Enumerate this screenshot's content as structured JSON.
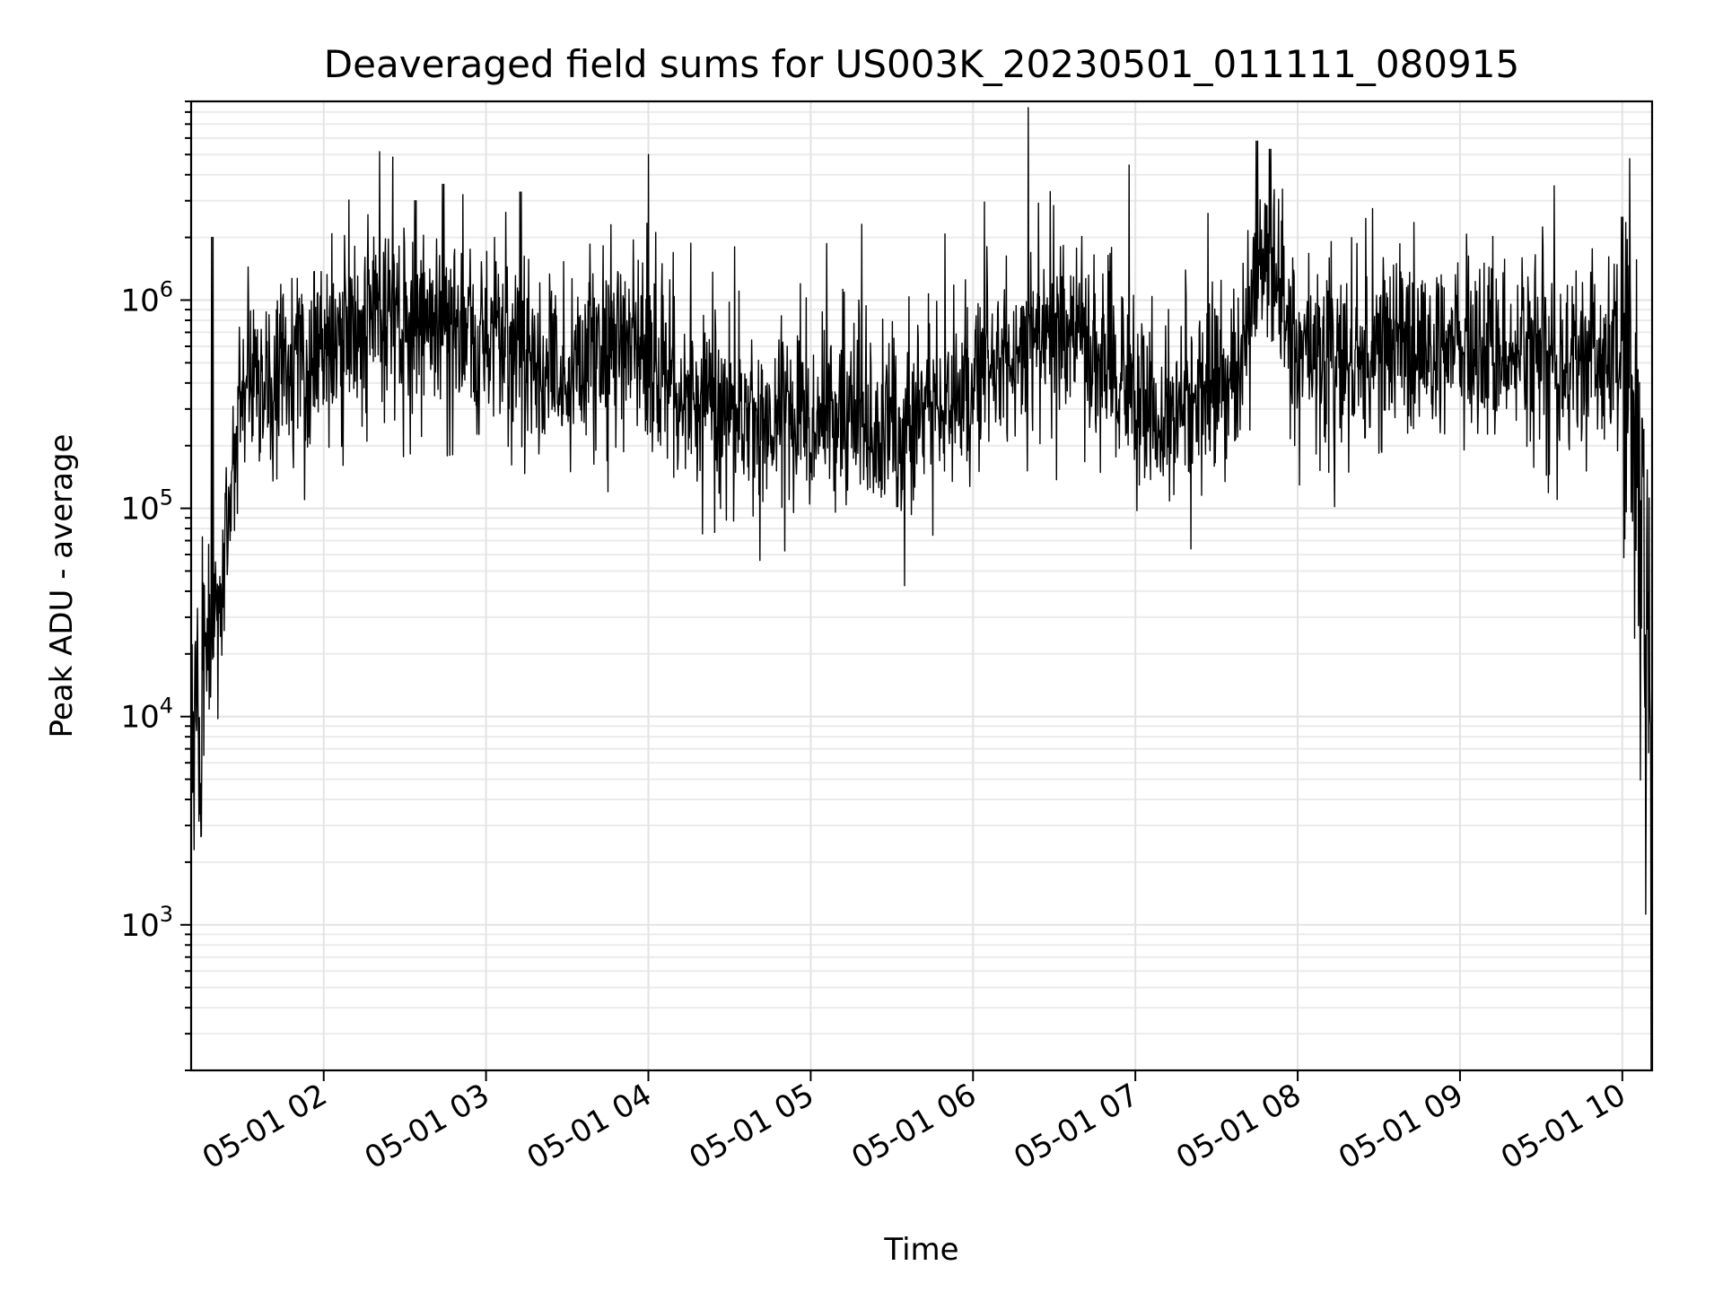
{
  "chart_data": {
    "type": "line",
    "title": "Deaveraged field sums for US003K_20230501_011111_080915",
    "xlabel": "Time",
    "ylabel": "Peak ADU - average",
    "xscale": "time",
    "yscale": "log",
    "xlim": [
      "05-01 01:11",
      "05-01 10:11"
    ],
    "ylim": [
      200,
      9000000
    ],
    "x_ticks": [
      "05-01 02",
      "05-01 03",
      "05-01 04",
      "05-01 05",
      "05-01 06",
      "05-01 07",
      "05-01 08",
      "05-01 09",
      "05-01 10"
    ],
    "y_ticks": [
      {
        "base": "10",
        "exp": "3",
        "value": 1000
      },
      {
        "base": "10",
        "exp": "4",
        "value": 10000
      },
      {
        "base": "10",
        "exp": "5",
        "value": 100000
      },
      {
        "base": "10",
        "exp": "6",
        "value": 1000000
      }
    ],
    "grid": "major and minor",
    "line_color": "#000000",
    "series": [
      {
        "x": [
          "05-01 01:11",
          "05-01 01:15",
          "05-01 01:19",
          "05-01 01:22",
          "05-01 01:25",
          "05-01 01:28",
          "05-01 01:32",
          "05-01 01:36",
          "05-01 01:42",
          "05-01 01:50",
          "05-01 02:00",
          "05-01 02:10",
          "05-01 02:20",
          "05-01 02:30",
          "05-01 02:40",
          "05-01 02:50",
          "05-01 03:00",
          "05-01 03:10",
          "05-01 03:20",
          "05-01 03:30",
          "05-01 03:40",
          "05-01 03:50",
          "05-01 04:00",
          "05-01 04:10",
          "05-01 04:20",
          "05-01 04:30",
          "05-01 04:40",
          "05-01 04:50",
          "05-01 05:00",
          "05-01 05:10",
          "05-01 05:20",
          "05-01 05:30",
          "05-01 05:40",
          "05-01 05:50",
          "05-01 06:00",
          "05-01 06:10",
          "05-01 06:20",
          "05-01 06:30",
          "05-01 06:40",
          "05-01 06:50",
          "05-01 07:00",
          "05-01 07:10",
          "05-01 07:20",
          "05-01 07:30",
          "05-01 07:40",
          "05-01 07:45",
          "05-01 07:50",
          "05-01 08:00",
          "05-01 08:10",
          "05-01 08:20",
          "05-01 08:30",
          "05-01 08:40",
          "05-01 08:50",
          "05-01 09:00",
          "05-01 09:10",
          "05-01 09:20",
          "05-01 09:30",
          "05-01 09:40",
          "05-01 09:50",
          "05-01 10:00",
          "05-01 10:03",
          "05-01 10:06",
          "05-01 10:08",
          "05-01 10:10",
          "05-01 10:11"
        ],
        "y": [
          8000,
          15000,
          25000,
          40000,
          100000,
          300000,
          400000,
          380000,
          420000,
          450000,
          550000,
          700000,
          850000,
          750000,
          700000,
          720000,
          650000,
          500000,
          420000,
          480000,
          560000,
          600000,
          520000,
          380000,
          300000,
          280000,
          270000,
          260000,
          300000,
          260000,
          250000,
          240000,
          260000,
          300000,
          420000,
          550000,
          650000,
          620000,
          560000,
          480000,
          350000,
          260000,
          350000,
          380000,
          520000,
          1500000,
          1200000,
          650000,
          560000,
          520000,
          520000,
          560000,
          580000,
          520000,
          480000,
          560000,
          600000,
          540000,
          520000,
          500000,
          250000,
          100000,
          60000,
          15000,
          500
        ]
      }
    ],
    "spikes": [
      {
        "x": "05-01 01:19",
        "y": 2000000
      },
      {
        "x": "05-01 02:34",
        "y": 3000000
      },
      {
        "x": "05-01 02:44",
        "y": 3600000
      },
      {
        "x": "05-01 03:13",
        "y": 3300000
      },
      {
        "x": "05-01 04:00",
        "y": 5000000
      },
      {
        "x": "05-01 07:45",
        "y": 5800000
      },
      {
        "x": "05-01 07:50",
        "y": 5300000
      },
      {
        "x": "05-01 10:00",
        "y": 2500000
      }
    ]
  }
}
